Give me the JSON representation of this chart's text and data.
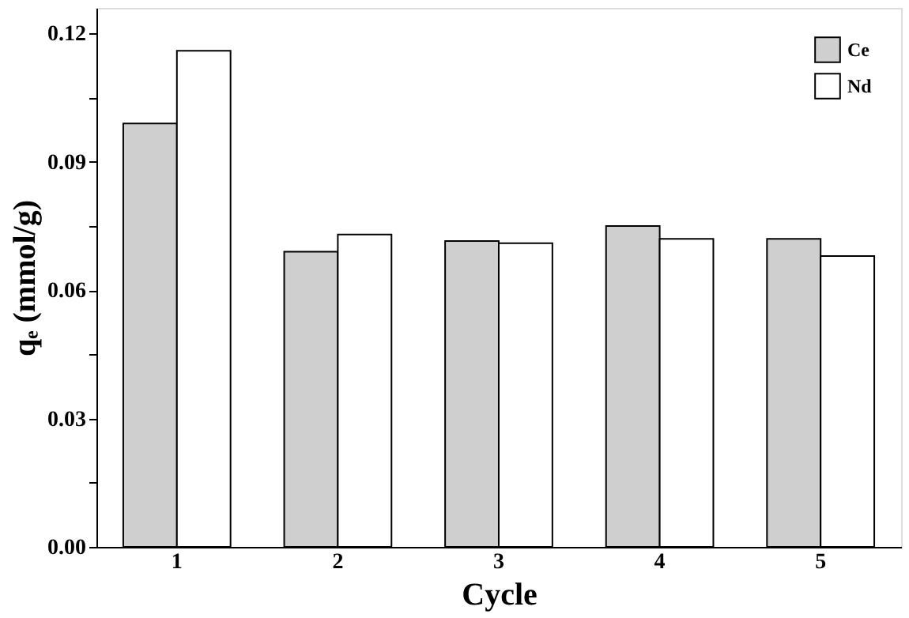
{
  "chart_data": {
    "type": "bar",
    "xlabel": "Cycle",
    "ylabel": "qₑ (mmol/g)",
    "categories": [
      "1",
      "2",
      "3",
      "4",
      "5"
    ],
    "series": [
      {
        "name": "Ce",
        "color": "#cfcfcf",
        "values": [
          0.099,
          0.069,
          0.0715,
          0.075,
          0.072
        ]
      },
      {
        "name": "Nd",
        "color": "#ffffff",
        "values": [
          0.116,
          0.073,
          0.071,
          0.072,
          0.068
        ]
      }
    ],
    "ylim": [
      0,
      0.126
    ],
    "yticks": [
      {
        "value": 0,
        "label": "0.00"
      },
      {
        "value": 0.015,
        "label": null
      },
      {
        "value": 0.03,
        "label": "0.03"
      },
      {
        "value": 0.045,
        "label": null
      },
      {
        "value": 0.06,
        "label": "0.06"
      },
      {
        "value": 0.075,
        "label": null
      },
      {
        "value": 0.09,
        "label": "0.09"
      },
      {
        "value": 0.105,
        "label": null
      },
      {
        "value": 0.12,
        "label": "0.12"
      }
    ],
    "grid": false,
    "legend": "top right"
  }
}
